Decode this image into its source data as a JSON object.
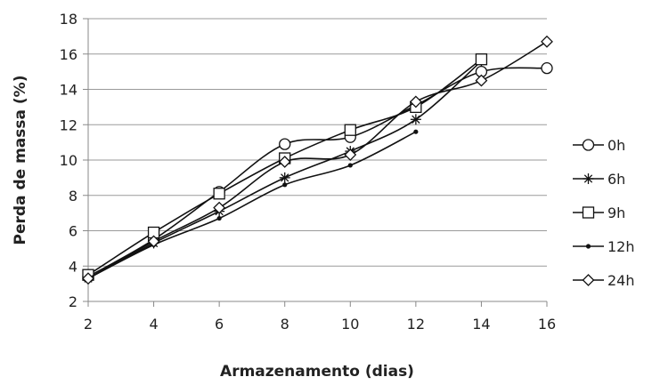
{
  "chart_data": {
    "type": "line",
    "xlabel": "Armazenamento (dias)",
    "ylabel": "Perda de massa (%)",
    "x": [
      2,
      4,
      6,
      8,
      10,
      12,
      14,
      16
    ],
    "xlim": [
      2,
      16
    ],
    "ylim": [
      2,
      18
    ],
    "xticks": [
      "2",
      "4",
      "6",
      "8",
      "10",
      "12",
      "14",
      "16"
    ],
    "yticks": [
      "2",
      "4",
      "6",
      "8",
      "10",
      "12",
      "14",
      "16",
      "18"
    ],
    "grid": "horizontal",
    "legend": "right",
    "series": [
      {
        "name": "0h",
        "marker": "circle",
        "values": [
          3.4,
          5.5,
          8.2,
          10.9,
          11.3,
          13.1,
          15.0,
          15.2
        ]
      },
      {
        "name": "6h",
        "marker": "star",
        "values": [
          3.3,
          5.3,
          7.1,
          9.0,
          10.5,
          12.3,
          15.6,
          null
        ]
      },
      {
        "name": "9h",
        "marker": "square",
        "values": [
          3.5,
          5.9,
          8.1,
          10.1,
          11.7,
          13.0,
          15.7,
          null
        ]
      },
      {
        "name": "12h",
        "marker": "dot",
        "values": [
          3.3,
          5.2,
          6.7,
          8.6,
          9.7,
          11.6,
          null,
          null
        ]
      },
      {
        "name": "24h",
        "marker": "diamond",
        "values": [
          3.3,
          5.4,
          7.3,
          9.9,
          10.3,
          13.3,
          14.5,
          16.7
        ]
      }
    ]
  }
}
